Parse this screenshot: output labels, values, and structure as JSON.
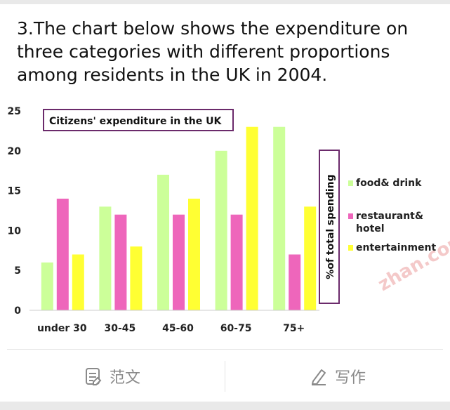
{
  "question": "3.The chart below shows the expenditure on\nthree categories with different proportions\namong residents in the UK in 2004.",
  "chart_data": {
    "type": "bar",
    "title": "Citizens' expenditure in the UK",
    "ylabel": "%of total spending",
    "xlabel": "",
    "categories": [
      "under 30",
      "30-45",
      "45-60",
      "60-75",
      "75+"
    ],
    "ylim": [
      0,
      25
    ],
    "yticks": [
      0,
      5,
      10,
      15,
      20,
      25
    ],
    "grid": false,
    "legend_position": "right",
    "series": [
      {
        "name": "food& drink",
        "color": "#ccff99",
        "values": [
          6,
          13,
          17,
          20,
          23
        ]
      },
      {
        "name": "restaurant&\nhotel",
        "color": "#ee66bb",
        "values": [
          14,
          12,
          12,
          12,
          7
        ]
      },
      {
        "name": "entertainment",
        "color": "#ffff33",
        "values": [
          7,
          8,
          14,
          23,
          13
        ]
      }
    ]
  },
  "watermark": "zhan.com",
  "actions": {
    "sample_label": "范文",
    "sample_icon": "document-icon",
    "write_label": "写作",
    "write_icon": "pencil-icon"
  }
}
